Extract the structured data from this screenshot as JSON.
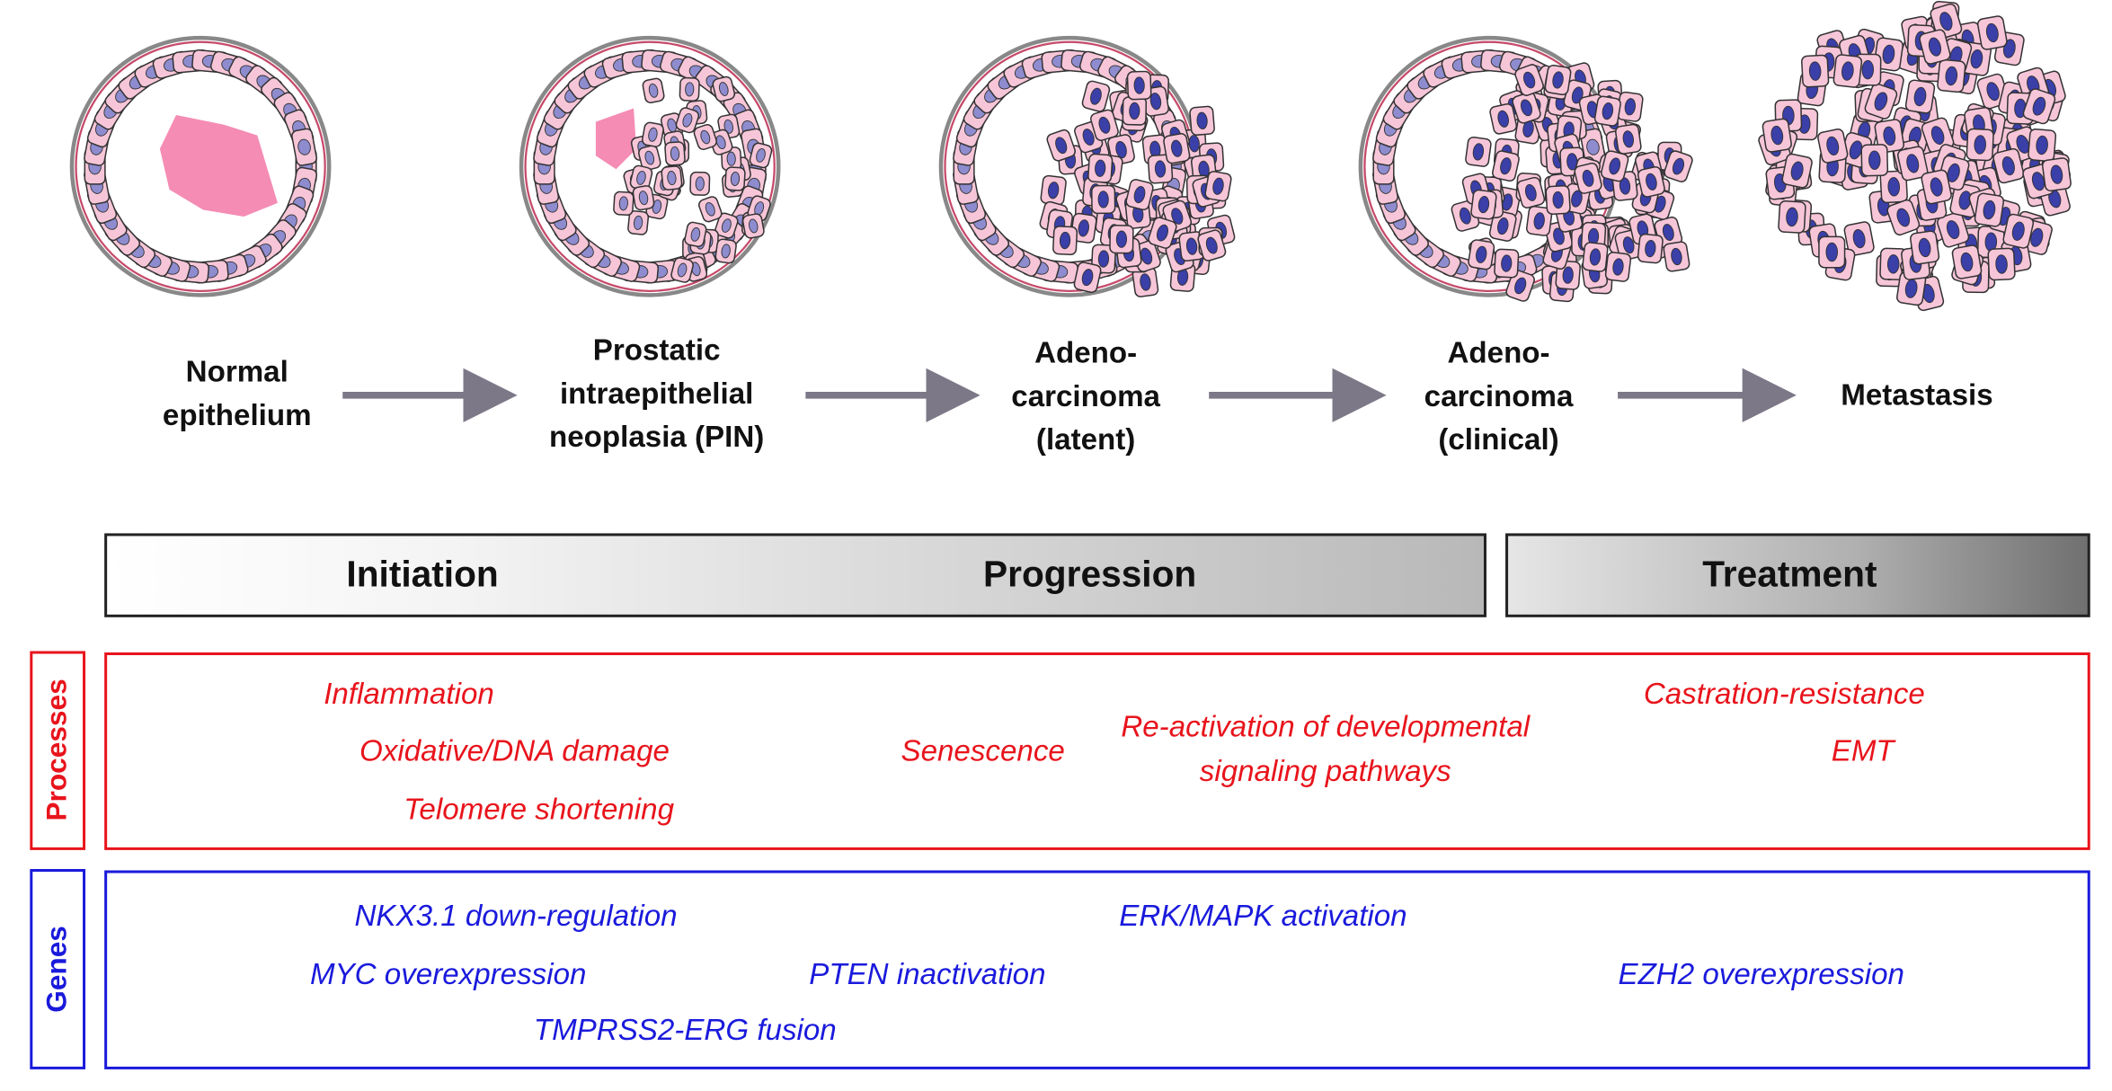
{
  "stages": [
    {
      "lines": [
        "Normal",
        "epithelium"
      ]
    },
    {
      "lines": [
        "Prostatic",
        "intraepithelial",
        "neoplasia (PIN)"
      ]
    },
    {
      "lines": [
        "Adeno-",
        "carcinoma",
        "(latent)"
      ]
    },
    {
      "lines": [
        "Adeno-",
        "carcinoma",
        "(clinical)"
      ]
    },
    {
      "lines": [
        "Metastasis"
      ]
    }
  ],
  "phases": [
    "Initiation",
    "Progression",
    "Treatment"
  ],
  "processes": {
    "label": "Processes",
    "items": [
      {
        "lines": [
          "Inflammation"
        ]
      },
      {
        "lines": [
          "Oxidative/DNA damage"
        ]
      },
      {
        "lines": [
          "Telomere shortening"
        ]
      },
      {
        "lines": [
          "Senescence"
        ]
      },
      {
        "lines": [
          "Re-activation of developmental",
          "signaling pathways"
        ]
      },
      {
        "lines": [
          "Castration-resistance"
        ]
      },
      {
        "lines": [
          "EMT"
        ]
      }
    ]
  },
  "genes": {
    "label": "Genes",
    "items": [
      {
        "lines": [
          "NKX3.1 down-regulation"
        ]
      },
      {
        "lines": [
          "MYC overexpression"
        ]
      },
      {
        "lines": [
          "TMPRSS2-ERG fusion"
        ]
      },
      {
        "lines": [
          "PTEN inactivation"
        ]
      },
      {
        "lines": [
          "ERK/MAPK activation"
        ]
      },
      {
        "lines": [
          "EZH2 overexpression"
        ]
      }
    ]
  }
}
